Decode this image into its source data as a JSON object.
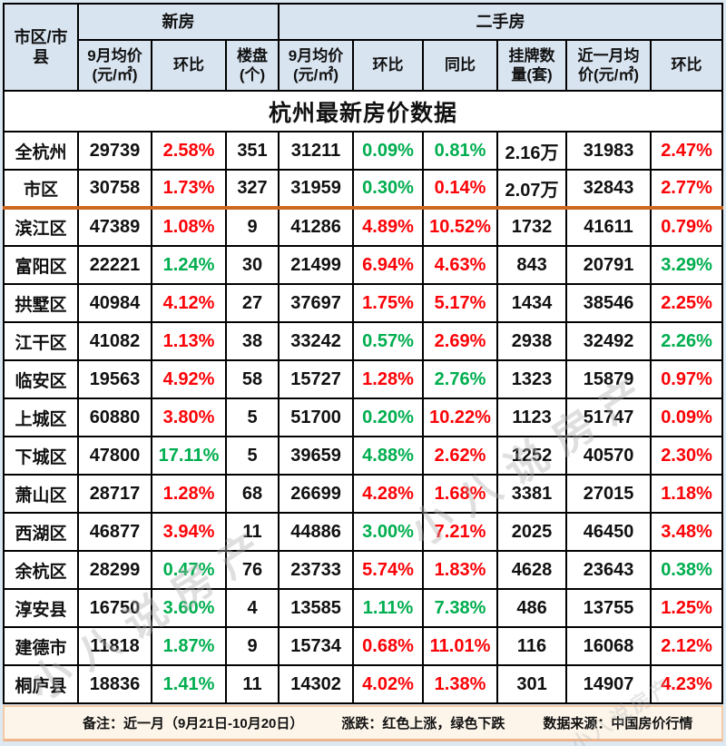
{
  "title": "杭州最新房价数据",
  "watermark": {
    "text": "小八说房产"
  },
  "colors": {
    "up_red": "#fb0307",
    "down_green": "#00ae4f",
    "header_bg": "#d8e4f0",
    "divider_orange": "#cd6820",
    "footer_bg": "#fdf5ea"
  },
  "table": {
    "corner_header": "市区/市\n县",
    "groups": {
      "new": "新房",
      "secondhand": "二手房"
    },
    "columns": [
      "9月均价\n(元/㎡)",
      "环比",
      "楼盘\n(个)",
      "9月均价\n(元/㎡)",
      "环比",
      "同比",
      "挂牌数\n量(套)",
      "近一月均\n价(元/㎡)",
      "环比"
    ],
    "rows": [
      {
        "region": "全杭州",
        "divider_below": false,
        "cells": [
          {
            "v": "29739"
          },
          {
            "v": "2.58%",
            "c": "red"
          },
          {
            "v": "351"
          },
          {
            "v": "31211"
          },
          {
            "v": "0.09%",
            "c": "green"
          },
          {
            "v": "0.81%",
            "c": "green"
          },
          {
            "v": "2.16万"
          },
          {
            "v": "31983"
          },
          {
            "v": "2.47%",
            "c": "red"
          }
        ]
      },
      {
        "region": "市区",
        "divider_below": true,
        "cells": [
          {
            "v": "30758"
          },
          {
            "v": "1.73%",
            "c": "red"
          },
          {
            "v": "327"
          },
          {
            "v": "31959"
          },
          {
            "v": "0.30%",
            "c": "green"
          },
          {
            "v": "0.14%",
            "c": "red"
          },
          {
            "v": "2.07万"
          },
          {
            "v": "32843"
          },
          {
            "v": "2.77%",
            "c": "red"
          }
        ]
      },
      {
        "region": "滨江区",
        "divider_below": false,
        "cells": [
          {
            "v": "47389"
          },
          {
            "v": "1.08%",
            "c": "red"
          },
          {
            "v": "9"
          },
          {
            "v": "41286"
          },
          {
            "v": "4.89%",
            "c": "red"
          },
          {
            "v": "10.52%",
            "c": "red"
          },
          {
            "v": "1732"
          },
          {
            "v": "41611"
          },
          {
            "v": "0.79%",
            "c": "red"
          }
        ]
      },
      {
        "region": "富阳区",
        "divider_below": false,
        "cells": [
          {
            "v": "22221"
          },
          {
            "v": "1.24%",
            "c": "green"
          },
          {
            "v": "30"
          },
          {
            "v": "21499"
          },
          {
            "v": "6.94%",
            "c": "red"
          },
          {
            "v": "4.63%",
            "c": "red"
          },
          {
            "v": "843"
          },
          {
            "v": "20791"
          },
          {
            "v": "3.29%",
            "c": "green"
          }
        ]
      },
      {
        "region": "拱墅区",
        "divider_below": false,
        "cells": [
          {
            "v": "40984"
          },
          {
            "v": "4.12%",
            "c": "red"
          },
          {
            "v": "27"
          },
          {
            "v": "37697"
          },
          {
            "v": "1.75%",
            "c": "red"
          },
          {
            "v": "5.17%",
            "c": "red"
          },
          {
            "v": "1434"
          },
          {
            "v": "38546"
          },
          {
            "v": "2.25%",
            "c": "red"
          }
        ]
      },
      {
        "region": "江干区",
        "divider_below": false,
        "cells": [
          {
            "v": "41082"
          },
          {
            "v": "1.13%",
            "c": "red"
          },
          {
            "v": "38"
          },
          {
            "v": "33242"
          },
          {
            "v": "0.57%",
            "c": "green"
          },
          {
            "v": "2.69%",
            "c": "red"
          },
          {
            "v": "2938"
          },
          {
            "v": "32492"
          },
          {
            "v": "2.26%",
            "c": "green"
          }
        ]
      },
      {
        "region": "临安区",
        "divider_below": false,
        "cells": [
          {
            "v": "19563"
          },
          {
            "v": "4.92%",
            "c": "red"
          },
          {
            "v": "58"
          },
          {
            "v": "15727"
          },
          {
            "v": "1.28%",
            "c": "red"
          },
          {
            "v": "2.76%",
            "c": "green"
          },
          {
            "v": "1323"
          },
          {
            "v": "15879"
          },
          {
            "v": "0.97%",
            "c": "red"
          }
        ]
      },
      {
        "region": "上城区",
        "divider_below": false,
        "cells": [
          {
            "v": "60880"
          },
          {
            "v": "3.80%",
            "c": "red"
          },
          {
            "v": "5"
          },
          {
            "v": "51700"
          },
          {
            "v": "0.20%",
            "c": "green"
          },
          {
            "v": "10.22%",
            "c": "red"
          },
          {
            "v": "1123"
          },
          {
            "v": "51747"
          },
          {
            "v": "0.09%",
            "c": "red"
          }
        ]
      },
      {
        "region": "下城区",
        "divider_below": false,
        "cells": [
          {
            "v": "47800"
          },
          {
            "v": "17.11%",
            "c": "green"
          },
          {
            "v": "5"
          },
          {
            "v": "39659"
          },
          {
            "v": "4.88%",
            "c": "green"
          },
          {
            "v": "2.62%",
            "c": "red"
          },
          {
            "v": "1252"
          },
          {
            "v": "40570"
          },
          {
            "v": "2.30%",
            "c": "red"
          }
        ]
      },
      {
        "region": "萧山区",
        "divider_below": false,
        "cells": [
          {
            "v": "28717"
          },
          {
            "v": "1.28%",
            "c": "red"
          },
          {
            "v": "68"
          },
          {
            "v": "26699"
          },
          {
            "v": "4.28%",
            "c": "red"
          },
          {
            "v": "1.68%",
            "c": "red"
          },
          {
            "v": "3381"
          },
          {
            "v": "27015"
          },
          {
            "v": "1.18%",
            "c": "red"
          }
        ]
      },
      {
        "region": "西湖区",
        "divider_below": false,
        "cells": [
          {
            "v": "46877"
          },
          {
            "v": "3.94%",
            "c": "red"
          },
          {
            "v": "11"
          },
          {
            "v": "44886"
          },
          {
            "v": "3.00%",
            "c": "green"
          },
          {
            "v": "7.21%",
            "c": "red"
          },
          {
            "v": "2025"
          },
          {
            "v": "46450"
          },
          {
            "v": "3.48%",
            "c": "red"
          }
        ]
      },
      {
        "region": "余杭区",
        "divider_below": false,
        "cells": [
          {
            "v": "28299"
          },
          {
            "v": "0.47%",
            "c": "green"
          },
          {
            "v": "76"
          },
          {
            "v": "23733"
          },
          {
            "v": "5.74%",
            "c": "red"
          },
          {
            "v": "1.83%",
            "c": "red"
          },
          {
            "v": "4628"
          },
          {
            "v": "23643"
          },
          {
            "v": "0.38%",
            "c": "green"
          }
        ]
      },
      {
        "region": "淳安县",
        "divider_below": false,
        "cells": [
          {
            "v": "16750"
          },
          {
            "v": "3.60%",
            "c": "green"
          },
          {
            "v": "4"
          },
          {
            "v": "13585"
          },
          {
            "v": "1.11%",
            "c": "green"
          },
          {
            "v": "7.38%",
            "c": "green"
          },
          {
            "v": "486"
          },
          {
            "v": "13755"
          },
          {
            "v": "1.25%",
            "c": "red"
          }
        ]
      },
      {
        "region": "建德市",
        "divider_below": false,
        "cells": [
          {
            "v": "11818"
          },
          {
            "v": "1.87%",
            "c": "green"
          },
          {
            "v": "9"
          },
          {
            "v": "15734"
          },
          {
            "v": "0.68%",
            "c": "red"
          },
          {
            "v": "11.01%",
            "c": "red"
          },
          {
            "v": "116"
          },
          {
            "v": "16068"
          },
          {
            "v": "2.12%",
            "c": "red"
          }
        ]
      },
      {
        "region": "桐庐县",
        "divider_below": false,
        "cells": [
          {
            "v": "18836"
          },
          {
            "v": "1.41%",
            "c": "green"
          },
          {
            "v": "11"
          },
          {
            "v": "14302"
          },
          {
            "v": "4.02%",
            "c": "red"
          },
          {
            "v": "1.38%",
            "c": "red"
          },
          {
            "v": "301"
          },
          {
            "v": "14907"
          },
          {
            "v": "4.23%",
            "c": "red"
          }
        ]
      }
    ]
  },
  "footer": {
    "note": "备注：近一月（9月21日-10月20日）",
    "legend": "涨跌：红色上涨，绿色下跌",
    "source": "数据来源：中国房价行情"
  }
}
